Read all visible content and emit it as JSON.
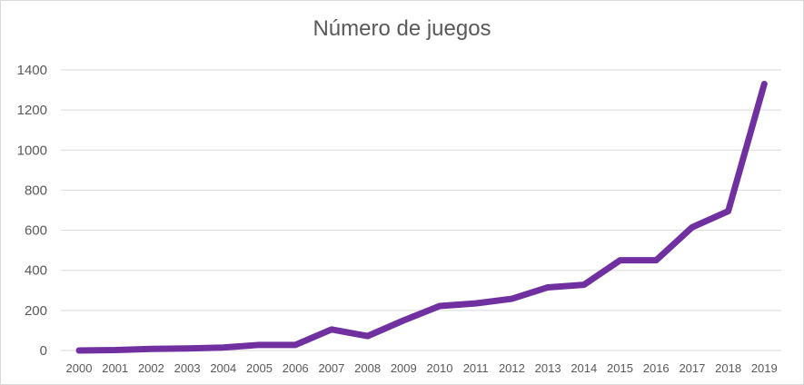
{
  "chart_data": {
    "type": "line",
    "title": "Número de juegos",
    "xlabel": "",
    "ylabel": "",
    "categories": [
      "2000",
      "2001",
      "2002",
      "2003",
      "2004",
      "2005",
      "2006",
      "2007",
      "2008",
      "2009",
      "2010",
      "2011",
      "2012",
      "2013",
      "2014",
      "2015",
      "2016",
      "2017",
      "2018",
      "2019"
    ],
    "series": [
      {
        "values": [
          0,
          2,
          8,
          10,
          15,
          28,
          28,
          105,
          72,
          150,
          222,
          235,
          258,
          315,
          328,
          450,
          450,
          615,
          695,
          1330
        ]
      }
    ],
    "ylim": [
      0,
      1400
    ],
    "yticks": [
      0,
      200,
      400,
      600,
      800,
      1000,
      1200,
      1400
    ],
    "grid": true,
    "line_color": "#7030a0",
    "grid_color": "#d9d9d9"
  }
}
